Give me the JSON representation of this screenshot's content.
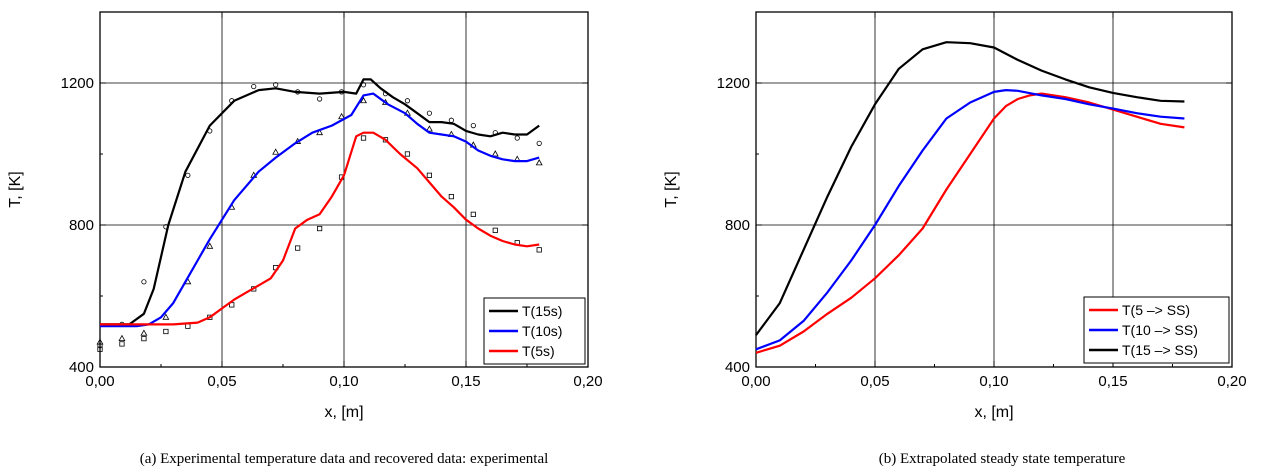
{
  "chart_data": [
    {
      "type": "line",
      "caption": "(a)  Experimental temperature data and recovered data: experimental",
      "xlabel": "x, [m]",
      "ylabel": "T, [K]",
      "xlim": [
        0,
        0.2
      ],
      "ylim": [
        400,
        1400
      ],
      "xticks": [
        "0,00",
        "0,05",
        "0,10",
        "0,15",
        "0,20"
      ],
      "yticks": [
        "400",
        "800",
        "1200"
      ],
      "grid": true,
      "legend_position": "bottom-right",
      "series": [
        {
          "name": "T(15s)",
          "color": "#000000",
          "x": [
            0,
            0.012,
            0.018,
            0.022,
            0.028,
            0.035,
            0.045,
            0.055,
            0.065,
            0.072,
            0.08,
            0.09,
            0.1,
            0.105,
            0.108,
            0.111,
            0.115,
            0.12,
            0.125,
            0.13,
            0.135,
            0.14,
            0.145,
            0.15,
            0.155,
            0.16,
            0.165,
            0.17,
            0.175,
            0.18
          ],
          "y": [
            520,
            520,
            550,
            620,
            800,
            950,
            1080,
            1150,
            1180,
            1185,
            1175,
            1170,
            1175,
            1170,
            1210,
            1210,
            1185,
            1160,
            1140,
            1115,
            1090,
            1090,
            1085,
            1065,
            1055,
            1050,
            1060,
            1055,
            1055,
            1080
          ]
        },
        {
          "name": "T(10s)",
          "color": "#0000ff",
          "x": [
            0,
            0.015,
            0.02,
            0.025,
            0.03,
            0.035,
            0.04,
            0.045,
            0.055,
            0.065,
            0.072,
            0.08,
            0.087,
            0.095,
            0.103,
            0.108,
            0.112,
            0.118,
            0.125,
            0.13,
            0.135,
            0.14,
            0.145,
            0.15,
            0.155,
            0.16,
            0.165,
            0.17,
            0.175,
            0.18
          ],
          "y": [
            515,
            515,
            520,
            540,
            580,
            640,
            700,
            760,
            870,
            950,
            990,
            1030,
            1060,
            1080,
            1110,
            1165,
            1170,
            1140,
            1115,
            1085,
            1060,
            1055,
            1050,
            1035,
            1010,
            995,
            985,
            980,
            980,
            990
          ]
        },
        {
          "name": "T(5s)",
          "color": "#ff0000",
          "x": [
            0,
            0.02,
            0.03,
            0.04,
            0.045,
            0.05,
            0.055,
            0.06,
            0.065,
            0.07,
            0.075,
            0.08,
            0.085,
            0.09,
            0.095,
            0.1,
            0.105,
            0.108,
            0.112,
            0.117,
            0.123,
            0.13,
            0.135,
            0.14,
            0.145,
            0.15,
            0.155,
            0.16,
            0.165,
            0.17,
            0.175,
            0.18
          ],
          "y": [
            520,
            520,
            520,
            525,
            540,
            565,
            590,
            610,
            630,
            650,
            700,
            790,
            815,
            830,
            880,
            940,
            1050,
            1060,
            1060,
            1040,
            1000,
            960,
            920,
            880,
            850,
            815,
            790,
            770,
            755,
            745,
            740,
            745
          ]
        }
      ],
      "points": [
        {
          "series": "T(15s)",
          "marker": "circle",
          "x": [
            0,
            0.009,
            0.018,
            0.027,
            0.036,
            0.045,
            0.054,
            0.063,
            0.072,
            0.081,
            0.09,
            0.099,
            0.108,
            0.117,
            0.126,
            0.135,
            0.144,
            0.153,
            0.162,
            0.171,
            0.18
          ],
          "y": [
            460,
            520,
            640,
            795,
            940,
            1065,
            1150,
            1190,
            1195,
            1175,
            1155,
            1175,
            1195,
            1170,
            1150,
            1115,
            1095,
            1080,
            1060,
            1045,
            1030
          ]
        },
        {
          "series": "T(10s)",
          "marker": "triangle",
          "x": [
            0,
            0.009,
            0.018,
            0.027,
            0.036,
            0.045,
            0.054,
            0.063,
            0.072,
            0.081,
            0.09,
            0.099,
            0.108,
            0.117,
            0.126,
            0.135,
            0.144,
            0.153,
            0.162,
            0.171,
            0.18
          ],
          "y": [
            470,
            480,
            495,
            540,
            640,
            740,
            850,
            940,
            1005,
            1035,
            1060,
            1105,
            1150,
            1145,
            1115,
            1070,
            1055,
            1025,
            1000,
            985,
            975
          ]
        },
        {
          "series": "T(5s)",
          "marker": "square",
          "x": [
            0,
            0.009,
            0.018,
            0.027,
            0.036,
            0.045,
            0.054,
            0.063,
            0.072,
            0.081,
            0.09,
            0.099,
            0.108,
            0.117,
            0.126,
            0.135,
            0.144,
            0.153,
            0.162,
            0.171,
            0.18
          ],
          "y": [
            450,
            465,
            480,
            500,
            515,
            540,
            575,
            620,
            680,
            735,
            790,
            935,
            1045,
            1040,
            1000,
            940,
            880,
            830,
            785,
            750,
            730
          ]
        }
      ]
    },
    {
      "type": "line",
      "caption": "(b)  Extrapolated steady state temperature",
      "xlabel": "x, [m]",
      "ylabel": "T, [K]",
      "xlim": [
        0,
        0.2
      ],
      "ylim": [
        400,
        1400
      ],
      "xticks": [
        "0,00",
        "0,05",
        "0,10",
        "0,15",
        "0,20"
      ],
      "yticks": [
        "400",
        "800",
        "1200"
      ],
      "grid": true,
      "legend_position": "bottom-right",
      "series": [
        {
          "name": "T(5 –> SS)",
          "color": "#ff0000",
          "x": [
            0,
            0.01,
            0.02,
            0.03,
            0.04,
            0.05,
            0.06,
            0.07,
            0.08,
            0.09,
            0.1,
            0.105,
            0.11,
            0.115,
            0.12,
            0.13,
            0.14,
            0.15,
            0.16,
            0.17,
            0.18
          ],
          "y": [
            440,
            460,
            500,
            550,
            595,
            650,
            715,
            790,
            900,
            1000,
            1100,
            1135,
            1155,
            1165,
            1170,
            1160,
            1145,
            1125,
            1105,
            1085,
            1075
          ]
        },
        {
          "name": "T(10 –> SS)",
          "color": "#0000ff",
          "x": [
            0,
            0.01,
            0.02,
            0.03,
            0.04,
            0.05,
            0.06,
            0.07,
            0.08,
            0.09,
            0.1,
            0.105,
            0.11,
            0.12,
            0.13,
            0.14,
            0.15,
            0.16,
            0.17,
            0.18
          ],
          "y": [
            450,
            475,
            530,
            610,
            700,
            800,
            910,
            1010,
            1100,
            1145,
            1175,
            1180,
            1178,
            1165,
            1155,
            1140,
            1128,
            1115,
            1105,
            1100
          ]
        },
        {
          "name": "T(15 –> SS)",
          "color": "#000000",
          "x": [
            0,
            0.01,
            0.02,
            0.03,
            0.04,
            0.05,
            0.06,
            0.07,
            0.08,
            0.09,
            0.1,
            0.11,
            0.12,
            0.13,
            0.14,
            0.15,
            0.16,
            0.17,
            0.18
          ],
          "y": [
            490,
            580,
            730,
            880,
            1020,
            1140,
            1240,
            1295,
            1315,
            1312,
            1300,
            1265,
            1235,
            1210,
            1188,
            1172,
            1160,
            1150,
            1148
          ]
        }
      ]
    }
  ]
}
